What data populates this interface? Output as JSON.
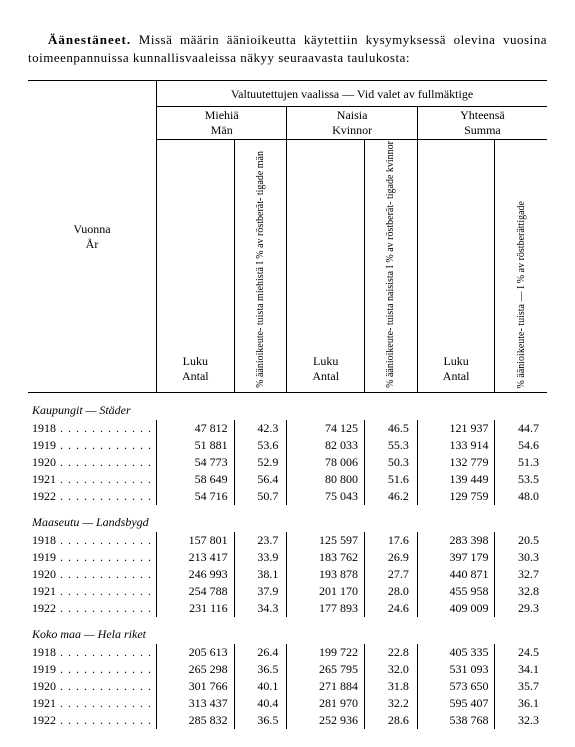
{
  "intro": {
    "lead": "Äänestäneet.",
    "rest": "Missä määrin äänioikeutta käytettiin kysymyksessä olevina vuosina toimeenpannuissa kunnallisvaaleissa näkyy seuraavasta taulukosta:"
  },
  "headers": {
    "vuonna": "Vuonna",
    "ar": "År",
    "superhead": "Valtuutettujen vaalissa — Vid valet av fullmäktige",
    "miehia": "Miehiä",
    "man": "Män",
    "naisia": "Naisia",
    "kvinnor": "Kvinnor",
    "yhteensa": "Yhteensä",
    "summa": "Summa",
    "luku": "Luku",
    "antal": "Antal",
    "rot_m": "% äänioikeute- tuista miehistä I % av röstberät- tigade män",
    "rot_k": "% äänioikeute- tuista naisista I % av röstberät- tigade kvinnor",
    "rot_s": "% äänioikeute- tuista — I % av röstberättigade"
  },
  "sections": [
    {
      "title": "Kaupungit — Städer",
      "rows": [
        {
          "year": "1918",
          "m_n": "47 812",
          "m_p": "42.3",
          "k_n": "74 125",
          "k_p": "46.5",
          "s_n": "121 937",
          "s_p": "44.7"
        },
        {
          "year": "1919",
          "m_n": "51 881",
          "m_p": "53.6",
          "k_n": "82 033",
          "k_p": "55.3",
          "s_n": "133 914",
          "s_p": "54.6"
        },
        {
          "year": "1920",
          "m_n": "54 773",
          "m_p": "52.9",
          "k_n": "78 006",
          "k_p": "50.3",
          "s_n": "132 779",
          "s_p": "51.3"
        },
        {
          "year": "1921",
          "m_n": "58 649",
          "m_p": "56.4",
          "k_n": "80 800",
          "k_p": "51.6",
          "s_n": "139 449",
          "s_p": "53.5"
        },
        {
          "year": "1922",
          "m_n": "54 716",
          "m_p": "50.7",
          "k_n": "75 043",
          "k_p": "46.2",
          "s_n": "129 759",
          "s_p": "48.0"
        }
      ]
    },
    {
      "title": "Maaseutu — Landsbygd",
      "rows": [
        {
          "year": "1918",
          "m_n": "157 801",
          "m_p": "23.7",
          "k_n": "125 597",
          "k_p": "17.6",
          "s_n": "283 398",
          "s_p": "20.5"
        },
        {
          "year": "1919",
          "m_n": "213 417",
          "m_p": "33.9",
          "k_n": "183 762",
          "k_p": "26.9",
          "s_n": "397 179",
          "s_p": "30.3"
        },
        {
          "year": "1920",
          "m_n": "246 993",
          "m_p": "38.1",
          "k_n": "193 878",
          "k_p": "27.7",
          "s_n": "440 871",
          "s_p": "32.7"
        },
        {
          "year": "1921",
          "m_n": "254 788",
          "m_p": "37.9",
          "k_n": "201 170",
          "k_p": "28.0",
          "s_n": "455 958",
          "s_p": "32.8"
        },
        {
          "year": "1922",
          "m_n": "231 116",
          "m_p": "34.3",
          "k_n": "177 893",
          "k_p": "24.6",
          "s_n": "409 009",
          "s_p": "29.3"
        }
      ]
    },
    {
      "title": "Koko maa — Hela riket",
      "rows": [
        {
          "year": "1918",
          "m_n": "205 613",
          "m_p": "26.4",
          "k_n": "199 722",
          "k_p": "22.8",
          "s_n": "405 335",
          "s_p": "24.5"
        },
        {
          "year": "1919",
          "m_n": "265 298",
          "m_p": "36.5",
          "k_n": "265 795",
          "k_p": "32.0",
          "s_n": "531 093",
          "s_p": "34.1"
        },
        {
          "year": "1920",
          "m_n": "301 766",
          "m_p": "40.1",
          "k_n": "271 884",
          "k_p": "31.8",
          "s_n": "573 650",
          "s_p": "35.7"
        },
        {
          "year": "1921",
          "m_n": "313 437",
          "m_p": "40.4",
          "k_n": "281 970",
          "k_p": "32.2",
          "s_n": "595 407",
          "s_p": "36.1"
        },
        {
          "year": "1922",
          "m_n": "285 832",
          "m_p": "36.5",
          "k_n": "252 936",
          "k_p": "28.6",
          "s_n": "538 768",
          "s_p": "32.3"
        }
      ]
    }
  ]
}
